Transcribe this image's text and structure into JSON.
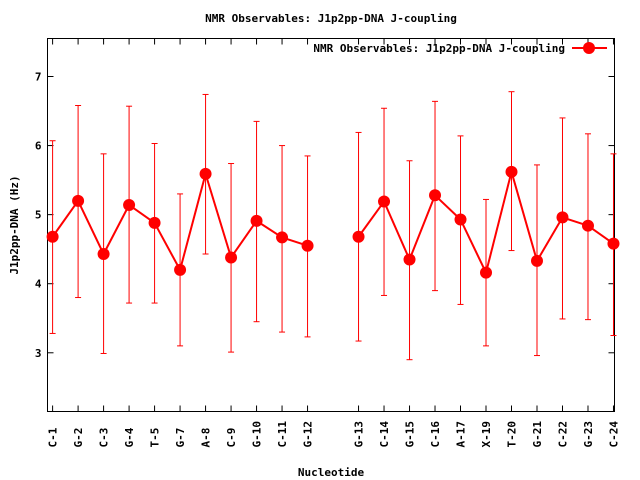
{
  "chart_data": {
    "type": "line",
    "title": "NMR Observables: J1p2pp-DNA J-coupling",
    "xlabel": "Nucleotide",
    "ylabel": "J1p2pp-DNA (Hz)",
    "ylim": [
      2.15,
      7.55
    ],
    "xlim": [
      0.8,
      23.04
    ],
    "yticks": [
      "3",
      "4",
      "5",
      "6",
      "7"
    ],
    "grid": false,
    "legend": {
      "position": "top-right",
      "label": "NMR Observables: J1p2pp-DNA J-coupling"
    },
    "series_color": "#ff0000",
    "points": [
      {
        "label": "C-1",
        "x": 1,
        "y": 4.68,
        "ylow": 3.28,
        "yhigh": 6.07
      },
      {
        "label": "G-2",
        "x": 2,
        "y": 5.2,
        "ylow": 3.8,
        "yhigh": 6.58
      },
      {
        "label": "C-3",
        "x": 3,
        "y": 4.43,
        "ylow": 2.99,
        "yhigh": 5.88
      },
      {
        "label": "G-4",
        "x": 4,
        "y": 5.14,
        "ylow": 3.72,
        "yhigh": 6.57
      },
      {
        "label": "T-5",
        "x": 5,
        "y": 4.88,
        "ylow": 3.72,
        "yhigh": 6.03
      },
      {
        "label": "G-7",
        "x": 6,
        "y": 4.2,
        "ylow": 3.1,
        "yhigh": 5.3
      },
      {
        "label": "A-8",
        "x": 7,
        "y": 5.59,
        "ylow": 4.43,
        "yhigh": 6.74
      },
      {
        "label": "C-9",
        "x": 8,
        "y": 4.38,
        "ylow": 3.01,
        "yhigh": 5.74
      },
      {
        "label": "G-10",
        "x": 9,
        "y": 4.91,
        "ylow": 3.45,
        "yhigh": 6.35
      },
      {
        "label": "C-11",
        "x": 10,
        "y": 4.67,
        "ylow": 3.3,
        "yhigh": 6.0
      },
      {
        "label": "G-12",
        "x": 11,
        "y": 4.55,
        "ylow": 3.23,
        "yhigh": 5.85
      },
      {
        "label": "G-13",
        "x": 13,
        "y": 4.68,
        "ylow": 3.17,
        "yhigh": 6.19
      },
      {
        "label": "C-14",
        "x": 14,
        "y": 5.19,
        "ylow": 3.83,
        "yhigh": 6.54
      },
      {
        "label": "G-15",
        "x": 15,
        "y": 4.35,
        "ylow": 2.9,
        "yhigh": 5.78
      },
      {
        "label": "C-16",
        "x": 16,
        "y": 5.28,
        "ylow": 3.9,
        "yhigh": 6.64
      },
      {
        "label": "A-17",
        "x": 17,
        "y": 4.93,
        "ylow": 3.7,
        "yhigh": 6.14
      },
      {
        "label": "X-19",
        "x": 18,
        "y": 4.16,
        "ylow": 3.1,
        "yhigh": 5.22
      },
      {
        "label": "T-20",
        "x": 19,
        "y": 5.62,
        "ylow": 4.48,
        "yhigh": 6.78
      },
      {
        "label": "G-21",
        "x": 20,
        "y": 4.33,
        "ylow": 2.96,
        "yhigh": 5.72
      },
      {
        "label": "C-22",
        "x": 21,
        "y": 4.96,
        "ylow": 3.49,
        "yhigh": 6.4
      },
      {
        "label": "G-23",
        "x": 22,
        "y": 4.84,
        "ylow": 3.48,
        "yhigh": 6.17
      },
      {
        "label": "C-24",
        "x": 23,
        "y": 4.58,
        "ylow": 3.25,
        "yhigh": 5.88
      }
    ]
  }
}
